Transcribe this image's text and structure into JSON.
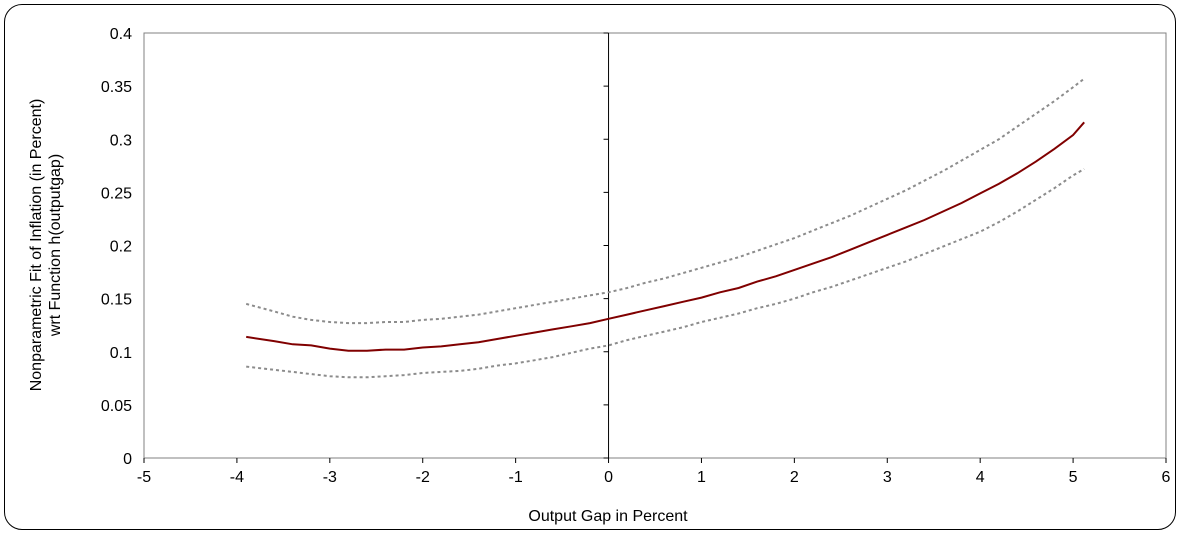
{
  "chart_data": {
    "type": "line",
    "xlabel": "Output Gap in Percent",
    "ylabel_lines": [
      "Nonparametric Fit of Inflation (in Percent)",
      "wrt Function h(outputgap)"
    ],
    "xlim": [
      -5,
      6
    ],
    "ylim": [
      0,
      0.4
    ],
    "xticks": [
      "-5",
      "-4",
      "-3",
      "-2",
      "-1",
      "0",
      "1",
      "2",
      "3",
      "4",
      "5",
      "6"
    ],
    "yticks": [
      "0",
      "0.05",
      "0.1",
      "0.15",
      "0.2",
      "0.25",
      "0.3",
      "0.35",
      "0.4"
    ],
    "grid": false,
    "legend": "none",
    "colors": {
      "fit": "#800000",
      "band": "#8c8c8c",
      "axis": "#000000"
    },
    "series": [
      {
        "role": "fit",
        "style": "solid",
        "x": [
          -3.9,
          -3.6,
          -3.4,
          -3.2,
          -3.0,
          -2.8,
          -2.6,
          -2.4,
          -2.2,
          -2.0,
          -1.8,
          -1.6,
          -1.4,
          -1.2,
          -1.0,
          -0.8,
          -0.6,
          -0.4,
          -0.2,
          0.0,
          0.2,
          0.4,
          0.6,
          0.8,
          1.0,
          1.2,
          1.4,
          1.6,
          1.8,
          2.0,
          2.2,
          2.4,
          2.6,
          2.8,
          3.0,
          3.2,
          3.4,
          3.6,
          3.8,
          4.0,
          4.2,
          4.4,
          4.6,
          4.8,
          5.0,
          5.12
        ],
        "y": [
          0.114,
          0.11,
          0.107,
          0.106,
          0.103,
          0.101,
          0.101,
          0.102,
          0.102,
          0.104,
          0.105,
          0.107,
          0.109,
          0.112,
          0.115,
          0.118,
          0.121,
          0.124,
          0.127,
          0.131,
          0.135,
          0.139,
          0.143,
          0.147,
          0.151,
          0.156,
          0.16,
          0.166,
          0.171,
          0.177,
          0.183,
          0.189,
          0.196,
          0.203,
          0.21,
          0.217,
          0.224,
          0.232,
          0.24,
          0.249,
          0.258,
          0.268,
          0.279,
          0.291,
          0.304,
          0.316
        ]
      },
      {
        "role": "upper-bound",
        "style": "dotted",
        "x": [
          -3.9,
          -3.6,
          -3.4,
          -3.2,
          -3.0,
          -2.8,
          -2.6,
          -2.4,
          -2.2,
          -2.0,
          -1.8,
          -1.6,
          -1.4,
          -1.2,
          -1.0,
          -0.8,
          -0.6,
          -0.4,
          -0.2,
          0.0,
          0.2,
          0.4,
          0.6,
          0.8,
          1.0,
          1.2,
          1.4,
          1.6,
          1.8,
          2.0,
          2.2,
          2.4,
          2.6,
          2.8,
          3.0,
          3.2,
          3.4,
          3.6,
          3.8,
          4.0,
          4.2,
          4.4,
          4.6,
          4.8,
          5.0,
          5.12
        ],
        "y": [
          0.145,
          0.138,
          0.133,
          0.13,
          0.128,
          0.127,
          0.127,
          0.128,
          0.128,
          0.13,
          0.131,
          0.133,
          0.135,
          0.138,
          0.141,
          0.144,
          0.147,
          0.15,
          0.153,
          0.156,
          0.16,
          0.165,
          0.169,
          0.174,
          0.179,
          0.184,
          0.189,
          0.195,
          0.201,
          0.207,
          0.214,
          0.221,
          0.228,
          0.236,
          0.244,
          0.252,
          0.261,
          0.27,
          0.28,
          0.29,
          0.3,
          0.312,
          0.324,
          0.336,
          0.349,
          0.357
        ]
      },
      {
        "role": "lower-bound",
        "style": "dotted",
        "x": [
          -3.9,
          -3.6,
          -3.4,
          -3.2,
          -3.0,
          -2.8,
          -2.6,
          -2.4,
          -2.2,
          -2.0,
          -1.8,
          -1.6,
          -1.4,
          -1.2,
          -1.0,
          -0.8,
          -0.6,
          -0.4,
          -0.2,
          0.0,
          0.2,
          0.4,
          0.6,
          0.8,
          1.0,
          1.2,
          1.4,
          1.6,
          1.8,
          2.0,
          2.2,
          2.4,
          2.6,
          2.8,
          3.0,
          3.2,
          3.4,
          3.6,
          3.8,
          4.0,
          4.2,
          4.4,
          4.6,
          4.8,
          5.0,
          5.12
        ],
        "y": [
          0.086,
          0.083,
          0.081,
          0.079,
          0.077,
          0.076,
          0.076,
          0.077,
          0.078,
          0.08,
          0.081,
          0.082,
          0.084,
          0.087,
          0.089,
          0.092,
          0.095,
          0.099,
          0.103,
          0.106,
          0.111,
          0.115,
          0.119,
          0.123,
          0.128,
          0.132,
          0.136,
          0.141,
          0.145,
          0.15,
          0.156,
          0.161,
          0.167,
          0.173,
          0.179,
          0.185,
          0.192,
          0.199,
          0.206,
          0.213,
          0.222,
          0.232,
          0.243,
          0.254,
          0.266,
          0.272
        ]
      }
    ]
  }
}
